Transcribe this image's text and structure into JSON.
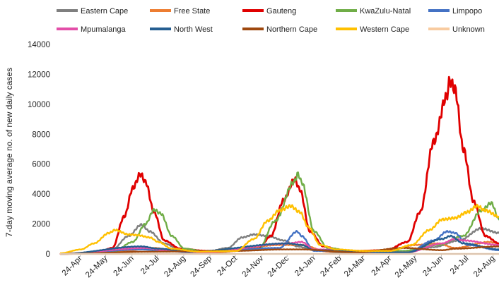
{
  "chart_data": {
    "type": "line",
    "xlabel": "",
    "ylabel": "7-day moving average no. of new daily cases",
    "ylim": [
      0,
      14000
    ],
    "yticks": [
      0,
      2000,
      4000,
      6000,
      8000,
      10000,
      12000,
      14000
    ],
    "x_start": "2020-04-01",
    "x_end": "2021-08-31",
    "xtick_labels": [
      "24-Apr",
      "24-May",
      "24-Jun",
      "24-Jul",
      "24-Aug",
      "24-Sep",
      "24-Oct",
      "24-Nov",
      "24-Dec",
      "24-Jan",
      "24-Feb",
      "24-Mar",
      "24-Apr",
      "24-May",
      "24-Jun",
      "24-Jul",
      "24-Aug"
    ],
    "xtick_dates": [
      "2020-04-24",
      "2020-05-24",
      "2020-06-24",
      "2020-07-24",
      "2020-08-24",
      "2020-09-24",
      "2020-10-24",
      "2020-11-24",
      "2020-12-24",
      "2021-01-24",
      "2021-02-24",
      "2021-03-24",
      "2021-04-24",
      "2021-05-24",
      "2021-06-24",
      "2021-07-24",
      "2021-08-24"
    ],
    "grid": false,
    "legend": "top",
    "series": [
      {
        "name": "Eastern Cape",
        "color": "#7f7f7f",
        "points": [
          [
            "2020-04-01",
            10
          ],
          [
            "2020-05-01",
            30
          ],
          [
            "2020-06-01",
            300
          ],
          [
            "2020-06-20",
            1200
          ],
          [
            "2020-07-05",
            1950
          ],
          [
            "2020-07-15",
            1500
          ],
          [
            "2020-08-01",
            700
          ],
          [
            "2020-08-20",
            250
          ],
          [
            "2020-09-20",
            150
          ],
          [
            "2020-10-15",
            400
          ],
          [
            "2020-11-01",
            1100
          ],
          [
            "2020-11-15",
            1300
          ],
          [
            "2020-12-01",
            1200
          ],
          [
            "2020-12-20",
            900
          ],
          [
            "2021-01-05",
            500
          ],
          [
            "2021-01-25",
            250
          ],
          [
            "2021-02-20",
            100
          ],
          [
            "2021-04-15",
            100
          ],
          [
            "2021-05-15",
            200
          ],
          [
            "2021-06-15",
            450
          ],
          [
            "2021-07-15",
            900
          ],
          [
            "2021-08-10",
            1700
          ],
          [
            "2021-08-31",
            1400
          ]
        ]
      },
      {
        "name": "Free State",
        "color": "#ed7d31",
        "points": [
          [
            "2020-04-01",
            0
          ],
          [
            "2020-06-15",
            200
          ],
          [
            "2020-07-20",
            400
          ],
          [
            "2020-08-15",
            200
          ],
          [
            "2020-10-01",
            100
          ],
          [
            "2020-12-15",
            600
          ],
          [
            "2021-01-10",
            600
          ],
          [
            "2021-02-10",
            150
          ],
          [
            "2021-04-25",
            250
          ],
          [
            "2021-05-25",
            600
          ],
          [
            "2021-06-20",
            700
          ],
          [
            "2021-07-10",
            400
          ],
          [
            "2021-08-20",
            800
          ],
          [
            "2021-08-31",
            700
          ]
        ]
      },
      {
        "name": "Gauteng",
        "color": "#e00000",
        "points": [
          [
            "2020-04-01",
            0
          ],
          [
            "2020-05-15",
            100
          ],
          [
            "2020-06-01",
            400
          ],
          [
            "2020-06-15",
            2500
          ],
          [
            "2020-06-25",
            4400
          ],
          [
            "2020-07-04",
            5350
          ],
          [
            "2020-07-10",
            4800
          ],
          [
            "2020-07-20",
            2800
          ],
          [
            "2020-08-01",
            900
          ],
          [
            "2020-08-20",
            350
          ],
          [
            "2020-09-20",
            200
          ],
          [
            "2020-10-20",
            200
          ],
          [
            "2020-11-20",
            350
          ],
          [
            "2020-12-05",
            1200
          ],
          [
            "2020-12-20",
            3600
          ],
          [
            "2021-01-02",
            5000
          ],
          [
            "2021-01-08",
            4300
          ],
          [
            "2021-01-20",
            1500
          ],
          [
            "2021-02-05",
            500
          ],
          [
            "2021-02-25",
            250
          ],
          [
            "2021-03-20",
            200
          ],
          [
            "2021-04-20",
            250
          ],
          [
            "2021-05-15",
            800
          ],
          [
            "2021-05-30",
            2800
          ],
          [
            "2021-06-15",
            7500
          ],
          [
            "2021-06-30",
            10500
          ],
          [
            "2021-07-04",
            11600
          ],
          [
            "2021-07-10",
            11000
          ],
          [
            "2021-07-20",
            7000
          ],
          [
            "2021-08-01",
            3500
          ],
          [
            "2021-08-15",
            1200
          ],
          [
            "2021-08-31",
            700
          ]
        ]
      },
      {
        "name": "KwaZulu-Natal",
        "color": "#70ad47",
        "points": [
          [
            "2020-04-01",
            0
          ],
          [
            "2020-06-01",
            100
          ],
          [
            "2020-06-25",
            800
          ],
          [
            "2020-07-10",
            2000
          ],
          [
            "2020-07-20",
            2950
          ],
          [
            "2020-07-28",
            2700
          ],
          [
            "2020-08-10",
            1200
          ],
          [
            "2020-08-25",
            350
          ],
          [
            "2020-09-20",
            150
          ],
          [
            "2020-11-20",
            250
          ],
          [
            "2020-12-10",
            2200
          ],
          [
            "2021-01-01",
            4800
          ],
          [
            "2021-01-06",
            5350
          ],
          [
            "2021-01-10",
            4800
          ],
          [
            "2021-01-25",
            1500
          ],
          [
            "2021-02-10",
            400
          ],
          [
            "2021-03-15",
            150
          ],
          [
            "2021-05-10",
            200
          ],
          [
            "2021-06-20",
            600
          ],
          [
            "2021-07-20",
            1200
          ],
          [
            "2021-08-10",
            2900
          ],
          [
            "2021-08-22",
            3400
          ],
          [
            "2021-08-31",
            2300
          ]
        ]
      },
      {
        "name": "Limpopo",
        "color": "#4472c4",
        "points": [
          [
            "2020-04-01",
            0
          ],
          [
            "2020-07-05",
            300
          ],
          [
            "2020-07-25",
            250
          ],
          [
            "2020-09-01",
            100
          ],
          [
            "2020-12-15",
            400
          ],
          [
            "2021-01-05",
            1500
          ],
          [
            "2021-01-10",
            1200
          ],
          [
            "2021-01-25",
            200
          ],
          [
            "2021-05-15",
            100
          ],
          [
            "2021-06-15",
            900
          ],
          [
            "2021-07-01",
            1500
          ],
          [
            "2021-07-10",
            1400
          ],
          [
            "2021-07-25",
            600
          ],
          [
            "2021-08-31",
            250
          ]
        ]
      },
      {
        "name": "Mpumalanga",
        "color": "#e34ea8",
        "points": [
          [
            "2020-04-01",
            0
          ],
          [
            "2020-07-10",
            400
          ],
          [
            "2020-08-01",
            250
          ],
          [
            "2020-09-15",
            100
          ],
          [
            "2020-12-25",
            700
          ],
          [
            "2021-01-10",
            800
          ],
          [
            "2021-01-25",
            300
          ],
          [
            "2021-05-15",
            100
          ],
          [
            "2021-06-25",
            700
          ],
          [
            "2021-07-10",
            1000
          ],
          [
            "2021-07-20",
            900
          ],
          [
            "2021-08-31",
            600
          ]
        ]
      },
      {
        "name": "North West",
        "color": "#255e91",
        "points": [
          [
            "2020-04-01",
            0
          ],
          [
            "2020-07-05",
            500
          ],
          [
            "2020-07-25",
            350
          ],
          [
            "2020-09-01",
            150
          ],
          [
            "2020-12-25",
            700
          ],
          [
            "2021-01-10",
            600
          ],
          [
            "2021-01-25",
            250
          ],
          [
            "2021-05-15",
            100
          ],
          [
            "2021-06-25",
            1000
          ],
          [
            "2021-07-05",
            1200
          ],
          [
            "2021-07-20",
            700
          ],
          [
            "2021-08-31",
            300
          ]
        ]
      },
      {
        "name": "Northern Cape",
        "color": "#9e480e",
        "points": [
          [
            "2020-04-01",
            0
          ],
          [
            "2020-07-15",
            150
          ],
          [
            "2020-10-20",
            200
          ],
          [
            "2020-12-20",
            300
          ],
          [
            "2021-01-10",
            300
          ],
          [
            "2021-03-15",
            100
          ],
          [
            "2021-05-10",
            400
          ],
          [
            "2021-06-25",
            250
          ],
          [
            "2021-07-10",
            350
          ],
          [
            "2021-08-31",
            500
          ]
        ]
      },
      {
        "name": "Western Cape",
        "color": "#ffc000",
        "points": [
          [
            "2020-04-01",
            50
          ],
          [
            "2020-04-25",
            300
          ],
          [
            "2020-05-10",
            700
          ],
          [
            "2020-05-28",
            1400
          ],
          [
            "2020-06-04",
            1600
          ],
          [
            "2020-06-20",
            1300
          ],
          [
            "2020-07-01",
            1250
          ],
          [
            "2020-07-15",
            1100
          ],
          [
            "2020-07-25",
            800
          ],
          [
            "2020-08-10",
            350
          ],
          [
            "2020-09-10",
            150
          ],
          [
            "2020-10-25",
            200
          ],
          [
            "2020-11-15",
            1000
          ],
          [
            "2020-12-01",
            2200
          ],
          [
            "2020-12-15",
            2900
          ],
          [
            "2020-12-28",
            3200
          ],
          [
            "2021-01-08",
            2800
          ],
          [
            "2021-01-18",
            1800
          ],
          [
            "2021-02-01",
            600
          ],
          [
            "2021-02-20",
            300
          ],
          [
            "2021-03-25",
            200
          ],
          [
            "2021-04-25",
            200
          ],
          [
            "2021-05-20",
            600
          ],
          [
            "2021-06-10",
            1600
          ],
          [
            "2021-06-25",
            2300
          ],
          [
            "2021-07-10",
            2400
          ],
          [
            "2021-07-25",
            2800
          ],
          [
            "2021-08-05",
            3200
          ],
          [
            "2021-08-15",
            2900
          ],
          [
            "2021-08-31",
            2500
          ]
        ]
      },
      {
        "name": "Unknown",
        "color": "#f8cba0",
        "points": [
          [
            "2020-04-01",
            0
          ],
          [
            "2021-08-31",
            0
          ]
        ]
      }
    ]
  }
}
